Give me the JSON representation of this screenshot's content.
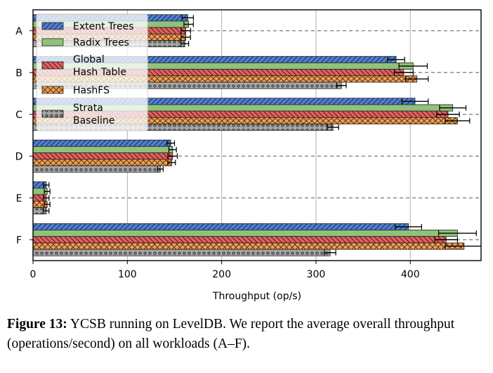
{
  "chart_data": {
    "type": "bar",
    "orientation": "horizontal",
    "categories": [
      "A",
      "B",
      "C",
      "D",
      "E",
      "F"
    ],
    "series": [
      {
        "name": "Extent Trees",
        "values": [
          164,
          385,
          405,
          146,
          14,
          398
        ],
        "errors": [
          6,
          9,
          14,
          4,
          3,
          14
        ],
        "color": "#4f7fd1",
        "hatch": "diagonal"
      },
      {
        "name": "Radix Trees",
        "values": [
          165,
          403,
          445,
          148,
          15,
          450
        ],
        "errors": [
          5,
          15,
          14,
          4,
          3,
          20
        ],
        "color": "#8fc27a",
        "hatch": "none"
      },
      {
        "name": "Global\nHash Table",
        "values": [
          162,
          393,
          440,
          148,
          14,
          438
        ],
        "errors": [
          5,
          10,
          12,
          5,
          3,
          12
        ],
        "color": "#e06060",
        "hatch": "backslash"
      },
      {
        "name": "HashFS",
        "values": [
          162,
          407,
          450,
          147,
          15,
          457
        ],
        "errors": [
          5,
          12,
          13,
          4,
          3,
          20
        ],
        "color": "#f0a055",
        "hatch": "cross"
      },
      {
        "name": "Strata\nBaseline",
        "values": [
          161,
          327,
          318,
          135,
          14,
          315
        ],
        "errors": [
          4,
          5,
          6,
          3,
          3,
          6
        ],
        "color": "#a6a6a6",
        "hatch": "dots"
      }
    ],
    "xlabel": "Throughput (op/s)",
    "ylabel": "",
    "xlim": [
      0,
      475
    ],
    "xticks": [
      0,
      100,
      200,
      300,
      400
    ],
    "grid": "vertical",
    "legend_position": "top-left",
    "category_guides": "dashed"
  },
  "caption": {
    "label": "Figure 13:",
    "text": " YCSB running on LevelDB. We report the average overall throughput (operations/second) on all workloads (A–F)."
  }
}
